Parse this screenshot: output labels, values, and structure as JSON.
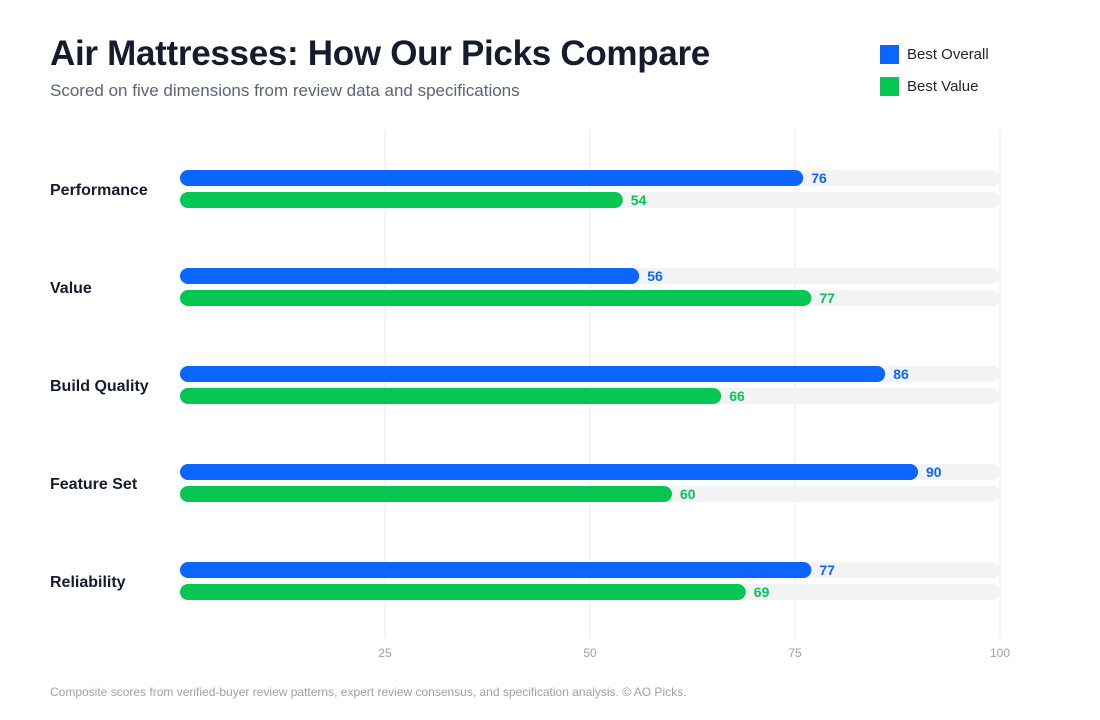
{
  "header": {
    "title": "Air Mattresses: How Our Picks Compare",
    "subtitle": "Scored on five dimensions from review data and specifications"
  },
  "footer": {
    "note": "Composite scores from verified-buyer review patterns, expert review consensus, and specification analysis. © AO Picks."
  },
  "colors": {
    "best_overall": "#0a66ff",
    "best_value": "#05c553",
    "track": "#f2f3f5",
    "grid": "#e6e8eb",
    "tick": "#9aa1ab",
    "category": "#141c2e"
  },
  "chart_data": {
    "type": "bar",
    "orientation": "horizontal",
    "categories": [
      "Performance",
      "Value",
      "Build Quality",
      "Feature Set",
      "Reliability"
    ],
    "series": [
      {
        "name": "Best Overall",
        "values": [
          76,
          56,
          86,
          90,
          77
        ]
      },
      {
        "name": "Best Value",
        "values": [
          54,
          77,
          66,
          60,
          69
        ]
      }
    ],
    "xlim": [
      0,
      100
    ],
    "xticks": [
      25,
      50,
      75,
      100
    ],
    "grid": true,
    "legend": "top-right",
    "data_labels": true
  }
}
